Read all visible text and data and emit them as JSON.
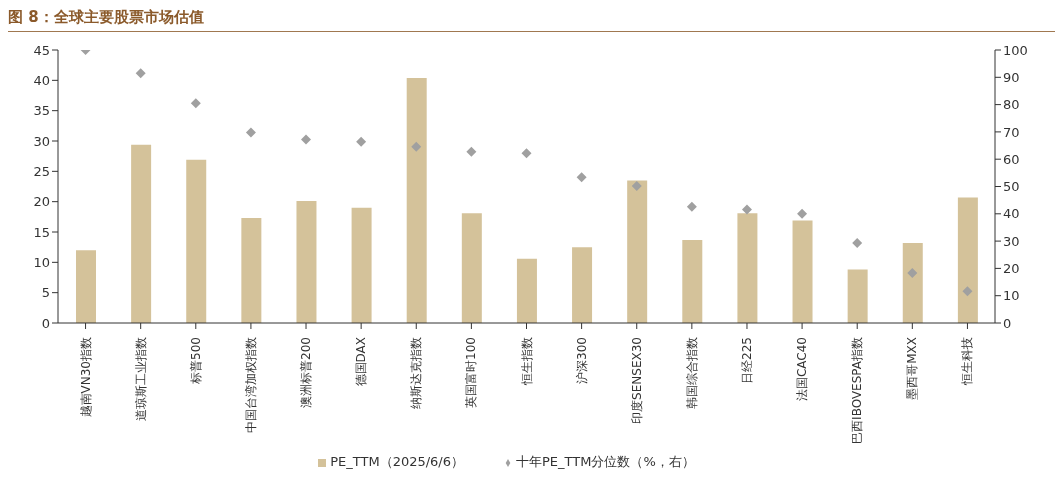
{
  "chart_data": {
    "type": "bar",
    "title": "图 8：全球主要股票市场估值",
    "categories": [
      "越南VN30指数",
      "道琼斯工业指数",
      "标普500",
      "中国台湾加权指数",
      "澳洲标普200",
      "德国DAX",
      "纳斯达克指数",
      "英国富时100",
      "恒生指数",
      "沪深300",
      "印度SENSEX30",
      "韩国综合指数",
      "日经225",
      "法国CAC40",
      "巴西IBOVESPA指数",
      "墨西哥MXX",
      "恒生科技"
    ],
    "series": [
      {
        "name": "PE_TTM（2025/6/6）",
        "color": "#d4c29a",
        "values": [
          12.0,
          29.4,
          26.9,
          17.3,
          20.1,
          19.0,
          40.4,
          18.1,
          10.6,
          12.5,
          23.5,
          13.7,
          18.1,
          16.9,
          8.8,
          13.2,
          20.7
        ]
      },
      {
        "type": "scatter",
        "axis": "y2",
        "name": "十年PE_TTM分位数（%，右）",
        "color": "#a0a0a0",
        "values": [
          100,
          91.5,
          80.5,
          69.8,
          67.2,
          66.4,
          64.6,
          62.7,
          62.2,
          53.4,
          50.2,
          42.6,
          41.6,
          40,
          29.3,
          18.3,
          11.6
        ]
      }
    ],
    "ylim": [
      0,
      45
    ],
    "yticks": [
      0,
      5,
      10,
      15,
      20,
      25,
      30,
      35,
      40,
      45
    ],
    "y2lim": [
      0,
      100
    ],
    "y2ticks": [
      0,
      10,
      20,
      30,
      40,
      50,
      60,
      70,
      80,
      90,
      100
    ],
    "marker": "diamond",
    "grid": false,
    "legend": "bottom"
  }
}
